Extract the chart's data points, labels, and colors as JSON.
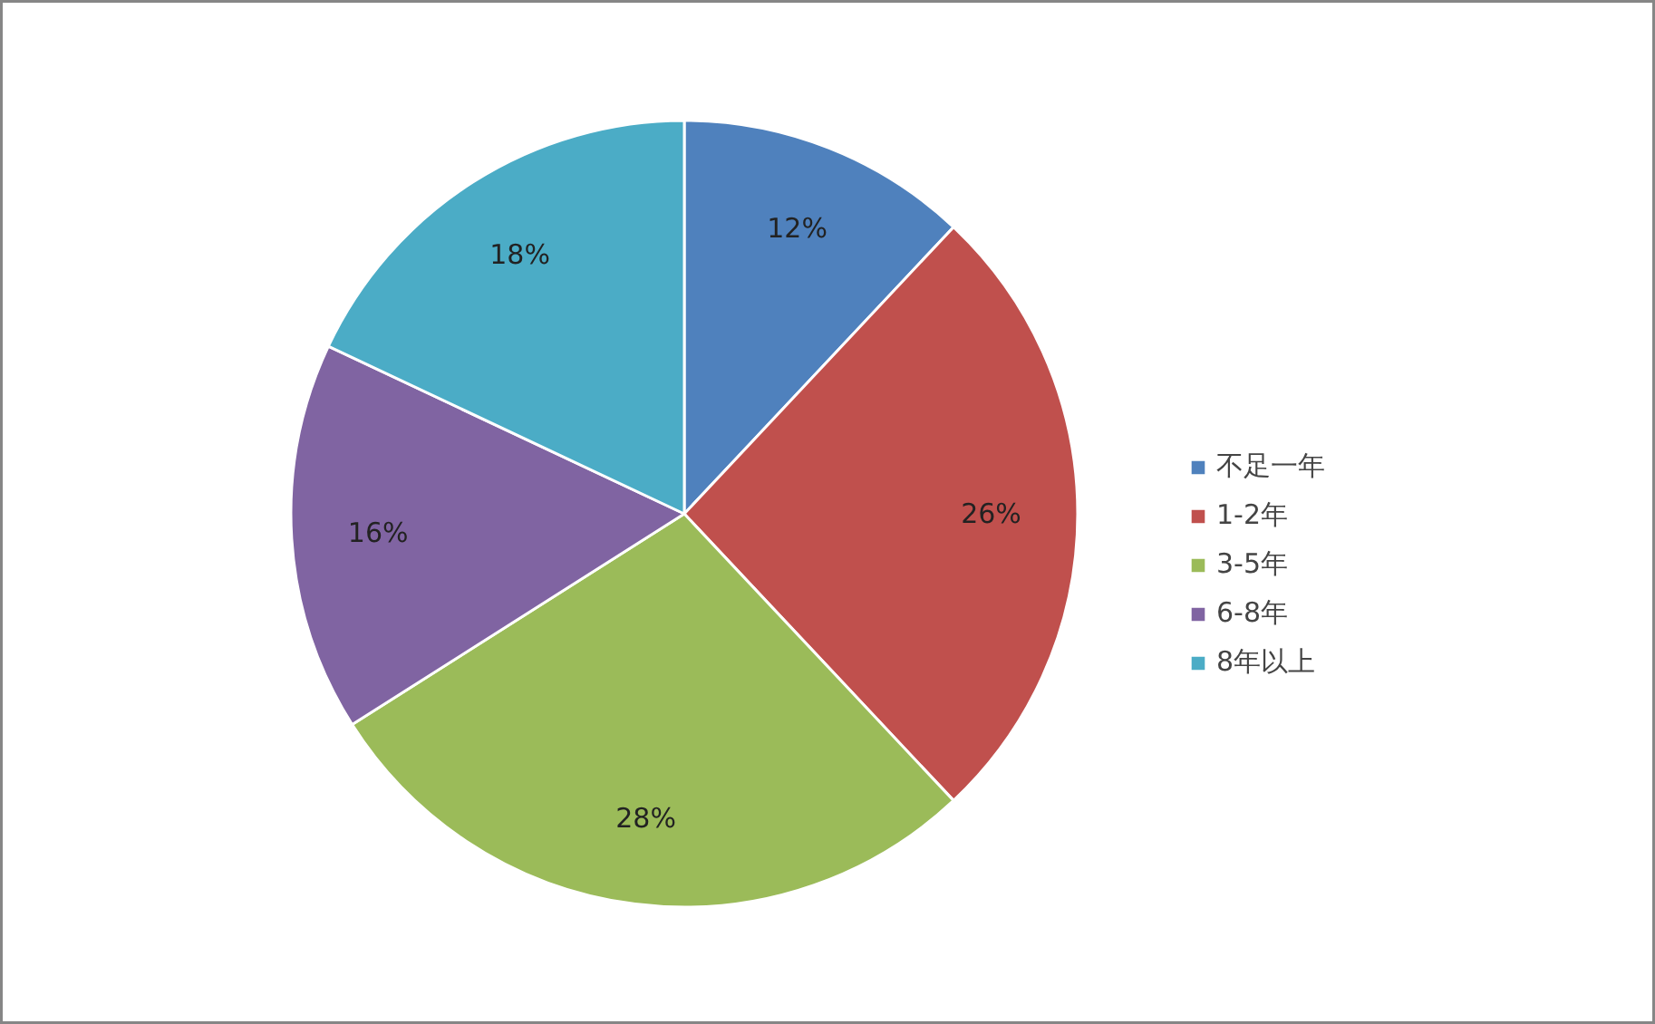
{
  "chart_data": {
    "type": "pie",
    "categories": [
      "不足一年",
      "1-2年",
      "3-5年",
      "6-8年",
      "8年以上"
    ],
    "values": [
      12,
      26,
      28,
      16,
      18
    ],
    "colors": [
      "#4f81bd",
      "#c0504d",
      "#9bbb59",
      "#8064a2",
      "#4bacc6"
    ],
    "value_labels": [
      "12%",
      "26%",
      "28%",
      "16%",
      "18%"
    ],
    "legend": "right"
  }
}
